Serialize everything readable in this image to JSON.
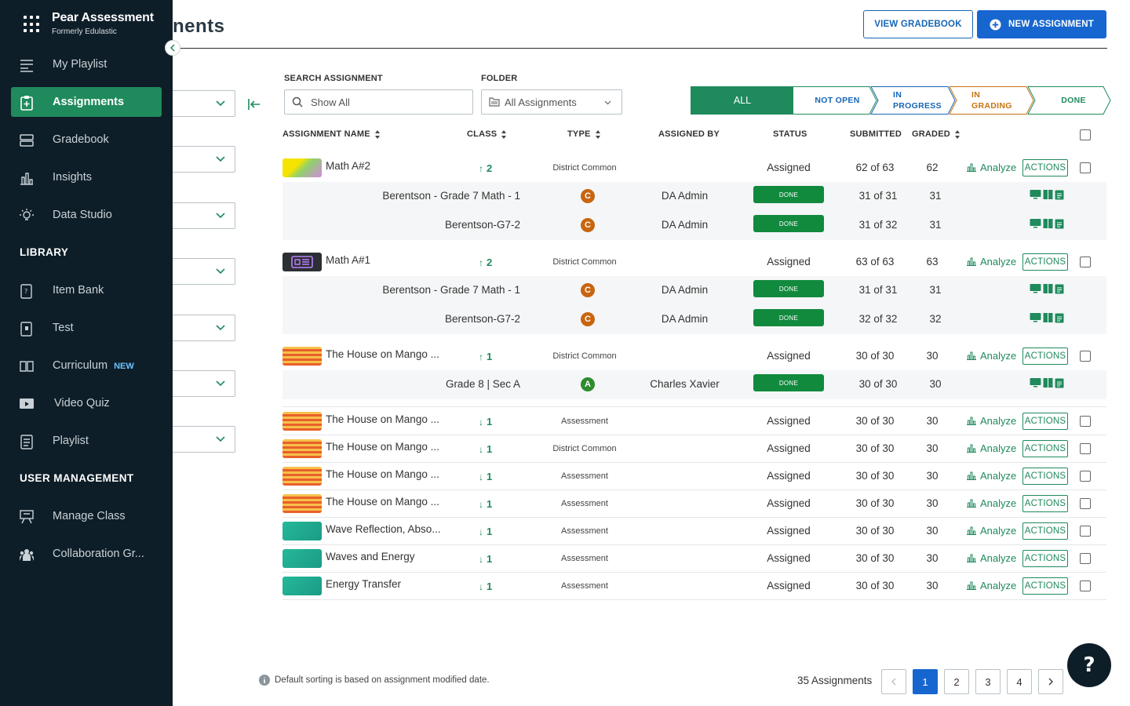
{
  "brand": {
    "title": "Pear Assessment",
    "subtitle": "Formerly Edulastic"
  },
  "page": {
    "title": "nents"
  },
  "header": {
    "view_gradebook": "VIEW GRADEBOOK",
    "new_assignment": "NEW ASSIGNMENT"
  },
  "sidebar": {
    "items": [
      {
        "label": "My Playlist",
        "icon": "playlist-icon"
      },
      {
        "label": "Assignments",
        "icon": "assignment-icon",
        "active": true
      },
      {
        "label": "Gradebook",
        "icon": "gradebook-icon"
      },
      {
        "label": "Insights",
        "icon": "bar-chart-icon"
      },
      {
        "label": "Data Studio",
        "icon": "lightbulb-icon"
      }
    ],
    "library_title": "LIBRARY",
    "library": [
      {
        "label": "Item Bank",
        "icon": "item-bank-icon"
      },
      {
        "label": "Test",
        "icon": "test-icon"
      },
      {
        "label": "Curriculum",
        "icon": "book-icon",
        "badge": "NEW"
      },
      {
        "label": "Video Quiz",
        "icon": "video-icon"
      },
      {
        "label": "Playlist",
        "icon": "list-icon"
      }
    ],
    "user_mgmt_title": "USER MANAGEMENT",
    "user_mgmt": [
      {
        "label": "Manage Class",
        "icon": "classroom-icon"
      },
      {
        "label": "Collaboration Gr...",
        "icon": "group-icon"
      }
    ]
  },
  "filters": {
    "search_label": "SEARCH ASSIGNMENT",
    "search_placeholder": "Show All",
    "folder_label": "FOLDER",
    "folder_value": "All Assignments"
  },
  "status_tabs": {
    "all": "ALL",
    "not_open": "NOT OPEN",
    "in_progress_1": "IN",
    "in_progress_2": "PROGRESS",
    "in_grading_1": "IN",
    "in_grading_2": "GRADING",
    "done": "DONE"
  },
  "columns": {
    "name": "ASSIGNMENT NAME",
    "class": "CLASS",
    "type": "TYPE",
    "assigned_by": "ASSIGNED BY",
    "status": "STATUS",
    "submitted": "SUBMITTED",
    "graded": "GRADED"
  },
  "labels": {
    "analyze": "Analyze",
    "actions": "ACTIONS",
    "done": "DONE"
  },
  "assignments": [
    {
      "name": "Math A#2",
      "class": "2",
      "dir": "up",
      "type": "District Common",
      "status": "Assigned",
      "submitted": "62 of 63",
      "graded": "62"
    },
    {
      "name": "Math A#1",
      "class": "2",
      "dir": "up",
      "type": "District Common",
      "status": "Assigned",
      "submitted": "63 of 63",
      "graded": "63"
    },
    {
      "name": "The House on Mango ...",
      "class": "1",
      "dir": "up",
      "type": "District Common",
      "status": "Assigned",
      "submitted": "30 of 30",
      "graded": "30"
    },
    {
      "name": "The House on Mango ...",
      "class": "1",
      "dir": "down",
      "type": "Assessment",
      "status": "Assigned",
      "submitted": "30 of 30",
      "graded": "30"
    },
    {
      "name": "The House on Mango ...",
      "class": "1",
      "dir": "down",
      "type": "District Common",
      "status": "Assigned",
      "submitted": "30 of 30",
      "graded": "30"
    },
    {
      "name": "The House on Mango ...",
      "class": "1",
      "dir": "down",
      "type": "Assessment",
      "status": "Assigned",
      "submitted": "30 of 30",
      "graded": "30"
    },
    {
      "name": "The House on Mango ...",
      "class": "1",
      "dir": "down",
      "type": "Assessment",
      "status": "Assigned",
      "submitted": "30 of 30",
      "graded": "30"
    },
    {
      "name": "Wave Reflection, Abso...",
      "class": "1",
      "dir": "down",
      "type": "Assessment",
      "status": "Assigned",
      "submitted": "30 of 30",
      "graded": "30"
    },
    {
      "name": "Waves and Energy",
      "class": "1",
      "dir": "down",
      "type": "Assessment",
      "status": "Assigned",
      "submitted": "30 of 30",
      "graded": "30"
    },
    {
      "name": "Energy Transfer",
      "class": "1",
      "dir": "down",
      "type": "Assessment",
      "status": "Assigned",
      "submitted": "30 of 30",
      "graded": "30"
    }
  ],
  "sections": [
    {
      "name": "Berentson - Grade 7 Math - 1",
      "badge": "C",
      "assigned_by": "DA Admin",
      "submitted": "31 of 31",
      "graded": "31"
    },
    {
      "name": "Berentson-G7-2",
      "badge": "C",
      "assigned_by": "DA Admin",
      "submitted": "31 of 32",
      "graded": "31"
    },
    {
      "name": "Berentson - Grade 7 Math - 1",
      "badge": "C",
      "assigned_by": "DA Admin",
      "submitted": "31 of 31",
      "graded": "31"
    },
    {
      "name": "Berentson-G7-2",
      "badge": "C",
      "assigned_by": "DA Admin",
      "submitted": "32 of 32",
      "graded": "32"
    },
    {
      "name": "Grade 8 | Sec A",
      "badge": "A",
      "assigned_by": "Charles Xavier",
      "submitted": "30 of 30",
      "graded": "30"
    }
  ],
  "footer": {
    "note": "Default sorting is based on assignment modified date.",
    "count": "35 Assignments",
    "pages": [
      "1",
      "2",
      "3",
      "4"
    ],
    "current_page": "1"
  },
  "help": "?",
  "colors": {
    "brand_green": "#1f8a5c",
    "primary_blue": "#1766d0",
    "sidebar_bg": "#0e1e28",
    "badge_orange": "#c8650f",
    "badge_green": "#2e8b2e"
  }
}
